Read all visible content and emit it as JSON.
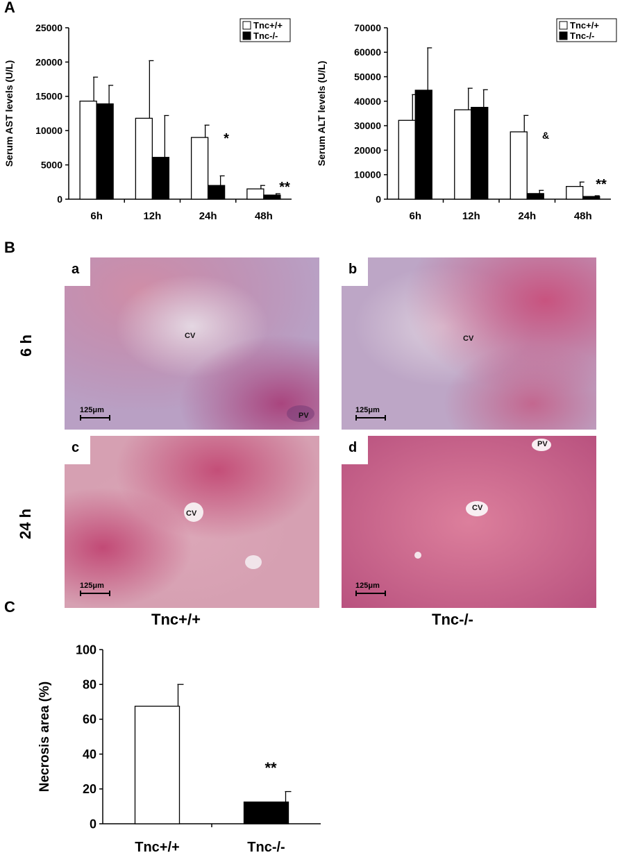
{
  "panels": {
    "A": "A",
    "B": "B",
    "C": "C"
  },
  "chart_data": [
    {
      "type": "bar",
      "ylabel": "Serum AST levels (U/L)",
      "categories": [
        "6h",
        "12h",
        "24h",
        "48h"
      ],
      "ylim": [
        0,
        25000
      ],
      "yticks": [
        "0",
        "5000",
        "10000",
        "15000",
        "20000",
        "25000"
      ],
      "series": [
        {
          "name": "Tnc+/+",
          "color": "#ffffff",
          "values": [
            14300,
            11800,
            9000,
            1500
          ],
          "errors": [
            3500,
            8400,
            1800,
            500
          ]
        },
        {
          "name": "Tnc-/-",
          "color": "#000000",
          "values": [
            13900,
            6100,
            2000,
            600
          ],
          "errors": [
            2700,
            6100,
            1400,
            200
          ]
        }
      ],
      "annotations": [
        {
          "category": "24h",
          "text": "*"
        },
        {
          "category": "48h",
          "text": "**"
        }
      ],
      "legend": "top-right"
    },
    {
      "type": "bar",
      "ylabel": "Serum ALT levels (U/L)",
      "categories": [
        "6h",
        "12h",
        "24h",
        "48h"
      ],
      "ylim": [
        0,
        70000
      ],
      "yticks": [
        "0",
        "10000",
        "20000",
        "30000",
        "40000",
        "50000",
        "60000",
        "70000"
      ],
      "series": [
        {
          "name": "Tnc+/+",
          "color": "#ffffff",
          "values": [
            32200,
            36500,
            27500,
            5200
          ],
          "errors": [
            10500,
            8800,
            6700,
            1800
          ]
        },
        {
          "name": "Tnc-/-",
          "color": "#000000",
          "values": [
            44500,
            37500,
            2300,
            1100
          ],
          "errors": [
            17300,
            7200,
            1300,
            300
          ]
        }
      ],
      "annotations": [
        {
          "category": "24h",
          "text": "&"
        },
        {
          "category": "48h",
          "text": "**"
        }
      ],
      "legend": "top-right"
    },
    {
      "type": "bar",
      "ylabel": "Necrosis area (%)",
      "categories": [
        "Tnc+/+",
        "Tnc-/-"
      ],
      "ylim": [
        0,
        100
      ],
      "yticks": [
        "0",
        "20",
        "40",
        "60",
        "80",
        "100"
      ],
      "series": [
        {
          "name": "",
          "values": [
            67.5,
            12.5
          ],
          "errors": [
            12.5,
            6
          ],
          "colors": [
            "#ffffff",
            "#000000"
          ]
        }
      ],
      "annotations": [
        {
          "category": "Tnc-/-",
          "text": "**"
        }
      ]
    }
  ],
  "micrographs": {
    "a": {
      "letter": "a",
      "labels": [
        "CV",
        "PV"
      ],
      "scale": "125μm"
    },
    "b": {
      "letter": "b",
      "labels": [
        "CV"
      ],
      "scale": "125μm"
    },
    "c": {
      "letter": "c",
      "labels": [
        "CV"
      ],
      "scale": "125μm"
    },
    "d": {
      "letter": "d",
      "labels": [
        "CV",
        "PV"
      ],
      "scale": "125μm"
    },
    "rows": [
      "6 h",
      "24 h"
    ],
    "cols": [
      "Tnc+/+",
      "Tnc-/-"
    ]
  }
}
